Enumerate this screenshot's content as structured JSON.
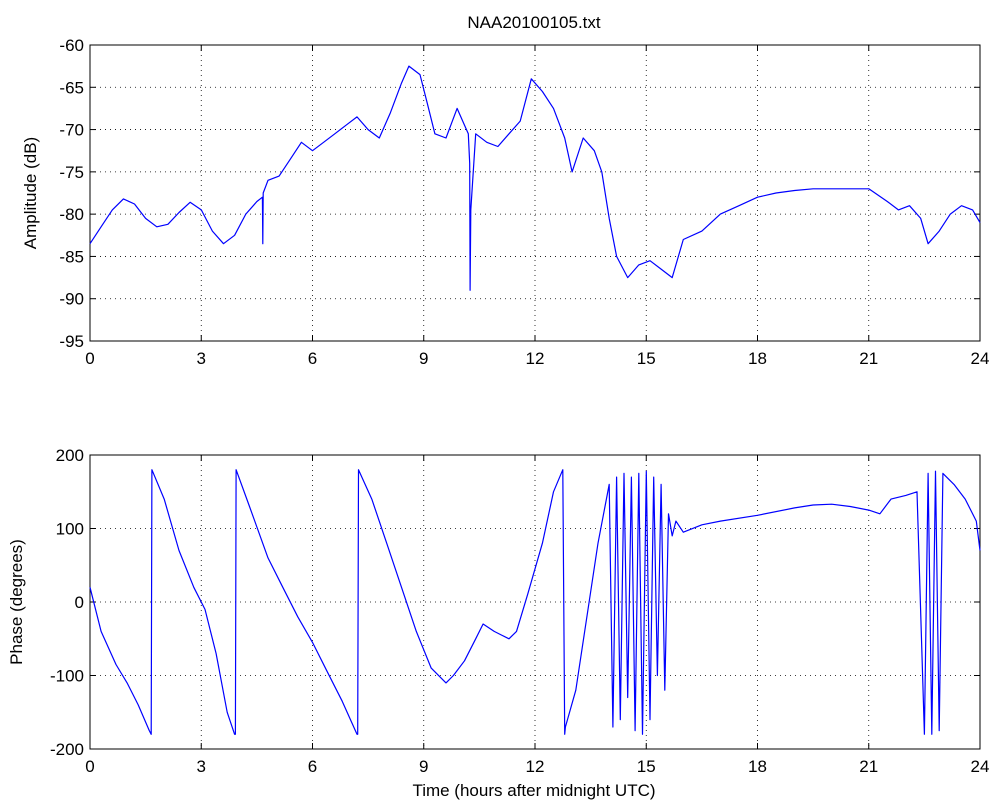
{
  "figure": {
    "title": "NAA20100105.txt"
  },
  "chart_data": [
    {
      "type": "line",
      "title": "NAA20100105.txt",
      "xlabel": "",
      "ylabel": "Amplitude (dB)",
      "xlim": [
        0,
        24
      ],
      "ylim": [
        -95,
        -60
      ],
      "xticks": [
        0,
        3,
        6,
        9,
        12,
        15,
        18,
        21,
        24
      ],
      "yticks": [
        -95,
        -90,
        -85,
        -80,
        -75,
        -70,
        -65,
        -60
      ],
      "grid": true,
      "line_color": "#0000ff",
      "series": [
        {
          "x": [
            0,
            0.3,
            0.6,
            0.9,
            1.2,
            1.5,
            1.8,
            2.1,
            2.4,
            2.7,
            3.0,
            3.3,
            3.6,
            3.9,
            4.2,
            4.5,
            4.65,
            4.66,
            4.67,
            4.8,
            5.1,
            5.4,
            5.7,
            6.0,
            6.3,
            6.6,
            6.9,
            7.2,
            7.5,
            7.8,
            8.1,
            8.4,
            8.6,
            8.9,
            9.1,
            9.3,
            9.6,
            9.9,
            10.2,
            10.24,
            10.25,
            10.27,
            10.4,
            10.7,
            11.0,
            11.3,
            11.6,
            11.9,
            12.2,
            12.5,
            12.8,
            13.0,
            13.3,
            13.6,
            13.8,
            14.0,
            14.2,
            14.5,
            14.8,
            15.1,
            15.4,
            15.7,
            16.0,
            16.5,
            17.0,
            17.5,
            18.0,
            18.5,
            19.0,
            19.5,
            20.0,
            20.5,
            21.0,
            21.5,
            21.8,
            22.1,
            22.4,
            22.6,
            22.9,
            23.2,
            23.5,
            23.8,
            24.0
          ],
          "y": [
            -83.5,
            -81.5,
            -79.5,
            -78.2,
            -78.8,
            -80.5,
            -81.5,
            -81.2,
            -79.8,
            -78.6,
            -79.5,
            -82.0,
            -83.5,
            -82.5,
            -80.0,
            -78.5,
            -78.0,
            -83.5,
            -77.5,
            -76.0,
            -75.5,
            -73.5,
            -71.5,
            -72.5,
            -71.5,
            -70.5,
            -69.5,
            -68.5,
            -70.0,
            -71.0,
            -68.0,
            -64.5,
            -62.5,
            -63.5,
            -67.0,
            -70.5,
            -71.0,
            -67.5,
            -70.5,
            -74.0,
            -89.0,
            -79.5,
            -70.5,
            -71.5,
            -72.0,
            -70.5,
            -69.0,
            -64.0,
            -65.5,
            -67.5,
            -71.0,
            -75.0,
            -71.0,
            -72.5,
            -75.0,
            -80.5,
            -85.0,
            -87.5,
            -86.0,
            -85.5,
            -86.5,
            -87.5,
            -83.0,
            -82.0,
            -80.0,
            -79.0,
            -78.0,
            -77.5,
            -77.2,
            -77.0,
            -77.0,
            -77.0,
            -77.0,
            -78.5,
            -79.5,
            -79.0,
            -80.5,
            -83.5,
            -82.0,
            -80.0,
            -79.0,
            -79.5,
            -81.0
          ]
        }
      ]
    },
    {
      "type": "line",
      "title": "",
      "xlabel": "Time (hours after midnight UTC)",
      "ylabel": "Phase (degrees)",
      "xlim": [
        0,
        24
      ],
      "ylim": [
        -200,
        200
      ],
      "xticks": [
        0,
        3,
        6,
        9,
        12,
        15,
        18,
        21,
        24
      ],
      "yticks": [
        -200,
        -100,
        0,
        100,
        200
      ],
      "grid": true,
      "line_color": "#0000ff",
      "series": [
        {
          "x": [
            0,
            0.3,
            0.7,
            1.0,
            1.3,
            1.6,
            1.65,
            1.67,
            2.0,
            2.4,
            2.8,
            3.1,
            3.4,
            3.7,
            3.9,
            3.92,
            3.94,
            4.3,
            4.8,
            5.2,
            5.6,
            6.0,
            6.4,
            6.8,
            7.2,
            7.22,
            7.24,
            7.6,
            8.0,
            8.4,
            8.8,
            9.2,
            9.6,
            9.8,
            10.1,
            10.4,
            10.6,
            10.9,
            11.1,
            11.3,
            11.5,
            11.8,
            12.2,
            12.5,
            12.75,
            12.8,
            12.82,
            13.1,
            13.4,
            13.7,
            14.0,
            14.1,
            14.2,
            14.3,
            14.4,
            14.5,
            14.6,
            14.7,
            14.8,
            14.9,
            15.0,
            15.1,
            15.2,
            15.3,
            15.4,
            15.5,
            15.6,
            15.7,
            15.8,
            16.0,
            16.5,
            17.0,
            18.0,
            19.0,
            19.5,
            20.0,
            20.5,
            21.0,
            21.3,
            21.6,
            22.0,
            22.3,
            22.5,
            22.6,
            22.7,
            22.8,
            22.9,
            23.0,
            23.3,
            23.6,
            23.9,
            24.0
          ],
          "y": [
            20,
            -40,
            -85,
            -110,
            -140,
            -175,
            -180,
            180,
            140,
            70,
            20,
            -10,
            -70,
            -150,
            -180,
            -180,
            180,
            130,
            60,
            20,
            -20,
            -55,
            -95,
            -135,
            -180,
            -180,
            180,
            140,
            80,
            20,
            -40,
            -90,
            -110,
            -100,
            -80,
            -50,
            -30,
            -40,
            -45,
            -50,
            -40,
            10,
            80,
            150,
            180,
            -180,
            -170,
            -120,
            -20,
            80,
            160,
            -170,
            170,
            -160,
            175,
            -130,
            170,
            -175,
            175,
            -180,
            178,
            -160,
            170,
            -100,
            160,
            -120,
            120,
            90,
            110,
            95,
            105,
            110,
            118,
            128,
            132,
            133,
            130,
            125,
            120,
            140,
            145,
            150,
            -180,
            175,
            -180,
            178,
            -175,
            175,
            160,
            140,
            110,
            70
          ]
        }
      ]
    }
  ]
}
